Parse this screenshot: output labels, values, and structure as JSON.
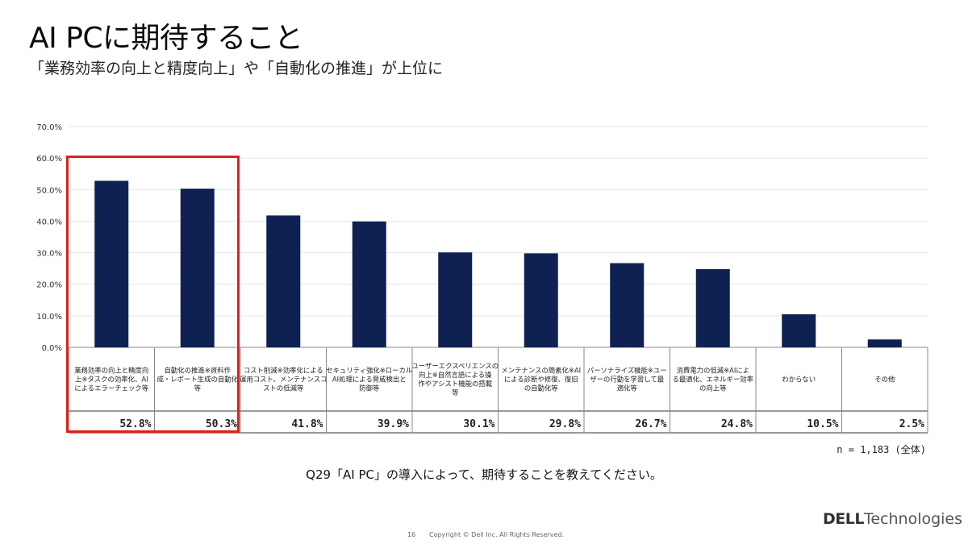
{
  "page": {
    "title": "AI PCに期待すること",
    "subtitle": "「業務効率の向上と精度向上」や「自動化の推進」が上位に",
    "n_label": "n = 1,183 (全体)",
    "question": "Q29「AI PC」の導入によって、期待することを教えてください。",
    "page_number": "16",
    "copyright": "Copyright © Dell Inc. All Rights Reserved.",
    "brand_strong": "DELL",
    "brand_light": "Technologies"
  },
  "colors": {
    "bar": "#0f2152",
    "highlight": "#e0201b",
    "grid": "#e6e6e6"
  },
  "chart_data": {
    "type": "bar",
    "categories": [
      "業務効率の向上と精度向上※タスクの効率化、AIによるエラーチェック等",
      "自動化の推進※資料作成・レポート生成の自動化等",
      "コスト削減※効率化による運用コスト、メンテナンスコストの低減等",
      "セキュリティ強化※ローカルAI処理による脅威検出と防御等",
      "ユーザーエクスペリエンスの向上※自然言語による操作やアシスト機能の搭載等",
      "メンテナンスの簡素化※AIによる診断や修復、復旧の自動化等",
      "パーソナライズ機能※ユーザーの行動を学習して最適化等",
      "消費電力の低減※AIによる最適化、エネルギー効率の向上等",
      "わからない",
      "その他"
    ],
    "category_lines": [
      [
        "業務効率の向上と精度向",
        "上※タスクの効率化、AI",
        "によるエラーチェック等"
      ],
      [
        "自動化の推進※資料作",
        "成・レポート生成の自動化",
        "等"
      ],
      [
        "コスト削減※効率化による",
        "運用コスト、メンテナンスコ",
        "ストの低減等"
      ],
      [
        "セキュリティ強化※ローカル",
        "AI処理による脅威検出と",
        "防御等"
      ],
      [
        "ユーザーエクスペリエンスの",
        "向上※自然言語による操",
        "作やアシスト機能の搭載",
        "等"
      ],
      [
        "メンテナンスの簡素化※AI",
        "による診断や修復、復旧",
        "の自動化等"
      ],
      [
        "パーソナライズ機能※ユー",
        "ザーの行動を学習して最",
        "適化等"
      ],
      [
        "消費電力の低減※AIによ",
        "る最適化、エネルギー効率",
        "の向上等"
      ],
      [
        "わからない"
      ],
      [
        "その他"
      ]
    ],
    "values": [
      52.8,
      50.3,
      41.8,
      39.9,
      30.1,
      29.8,
      26.7,
      24.8,
      10.5,
      2.5
    ],
    "value_labels": [
      "52.8%",
      "50.3%",
      "41.8%",
      "39.9%",
      "30.1%",
      "29.8%",
      "26.7%",
      "24.8%",
      "10.5%",
      "2.5%"
    ],
    "y_ticks": [
      0,
      10,
      20,
      30,
      40,
      50,
      60,
      70
    ],
    "y_tick_labels": [
      "0.0%",
      "10.0%",
      "20.0%",
      "30.0%",
      "40.0%",
      "50.0%",
      "60.0%",
      "70.0%"
    ],
    "ylim": [
      0,
      70
    ],
    "grid": true,
    "legend": false,
    "highlighted_categories": [
      0,
      1
    ]
  }
}
